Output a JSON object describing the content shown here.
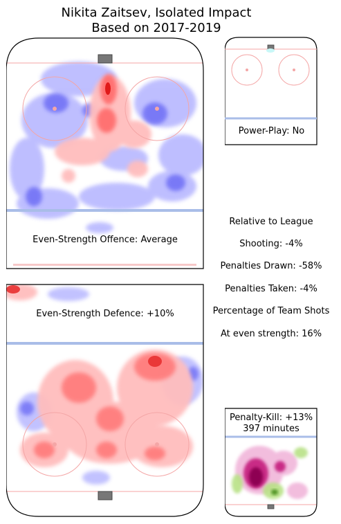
{
  "header": {
    "title_line1": "Nikita Zaitsev, Isolated Impact",
    "title_line2": "Based on 2017-2019"
  },
  "panels": {
    "offence_label": "Even-Strength Offence: Average",
    "defence_label": "Even-Strength Defence: +10%",
    "power_play_label": "Power-Play: No",
    "penalty_kill_label": "Penalty-Kill: +13%",
    "penalty_kill_minutes": "397 minutes"
  },
  "stats": {
    "heading": "Relative to League",
    "shooting": "Shooting: -4%",
    "penalties_drawn": "Penalties Drawn: -58%",
    "penalties_taken": "Penalties Taken: -4%",
    "team_shots_heading": "Percentage of Team Shots",
    "even_strength_share": "At even strength: 16%"
  },
  "colors": {
    "positive": "#ff4d4d",
    "negative": "#4d4dff",
    "pk_positive": "#8e0152",
    "pk_negative": "#4d9221",
    "blue_line": "#a9bde8",
    "goal_line": "#f4a6a6"
  },
  "chart_data": [
    {
      "type": "heatmap",
      "title": "Even-Strength Offence: Average",
      "scale": "diverging red(+)/blue(-)"
    },
    {
      "type": "heatmap",
      "title": "Even-Strength Defence: +10%",
      "scale": "diverging red(+)/blue(-)"
    },
    {
      "type": "heatmap",
      "title": "Power-Play: No"
    },
    {
      "type": "heatmap",
      "title": "Penalty-Kill: +13%",
      "subtitle": "397 minutes",
      "scale": "diverging pink(+)/green(-)"
    }
  ]
}
